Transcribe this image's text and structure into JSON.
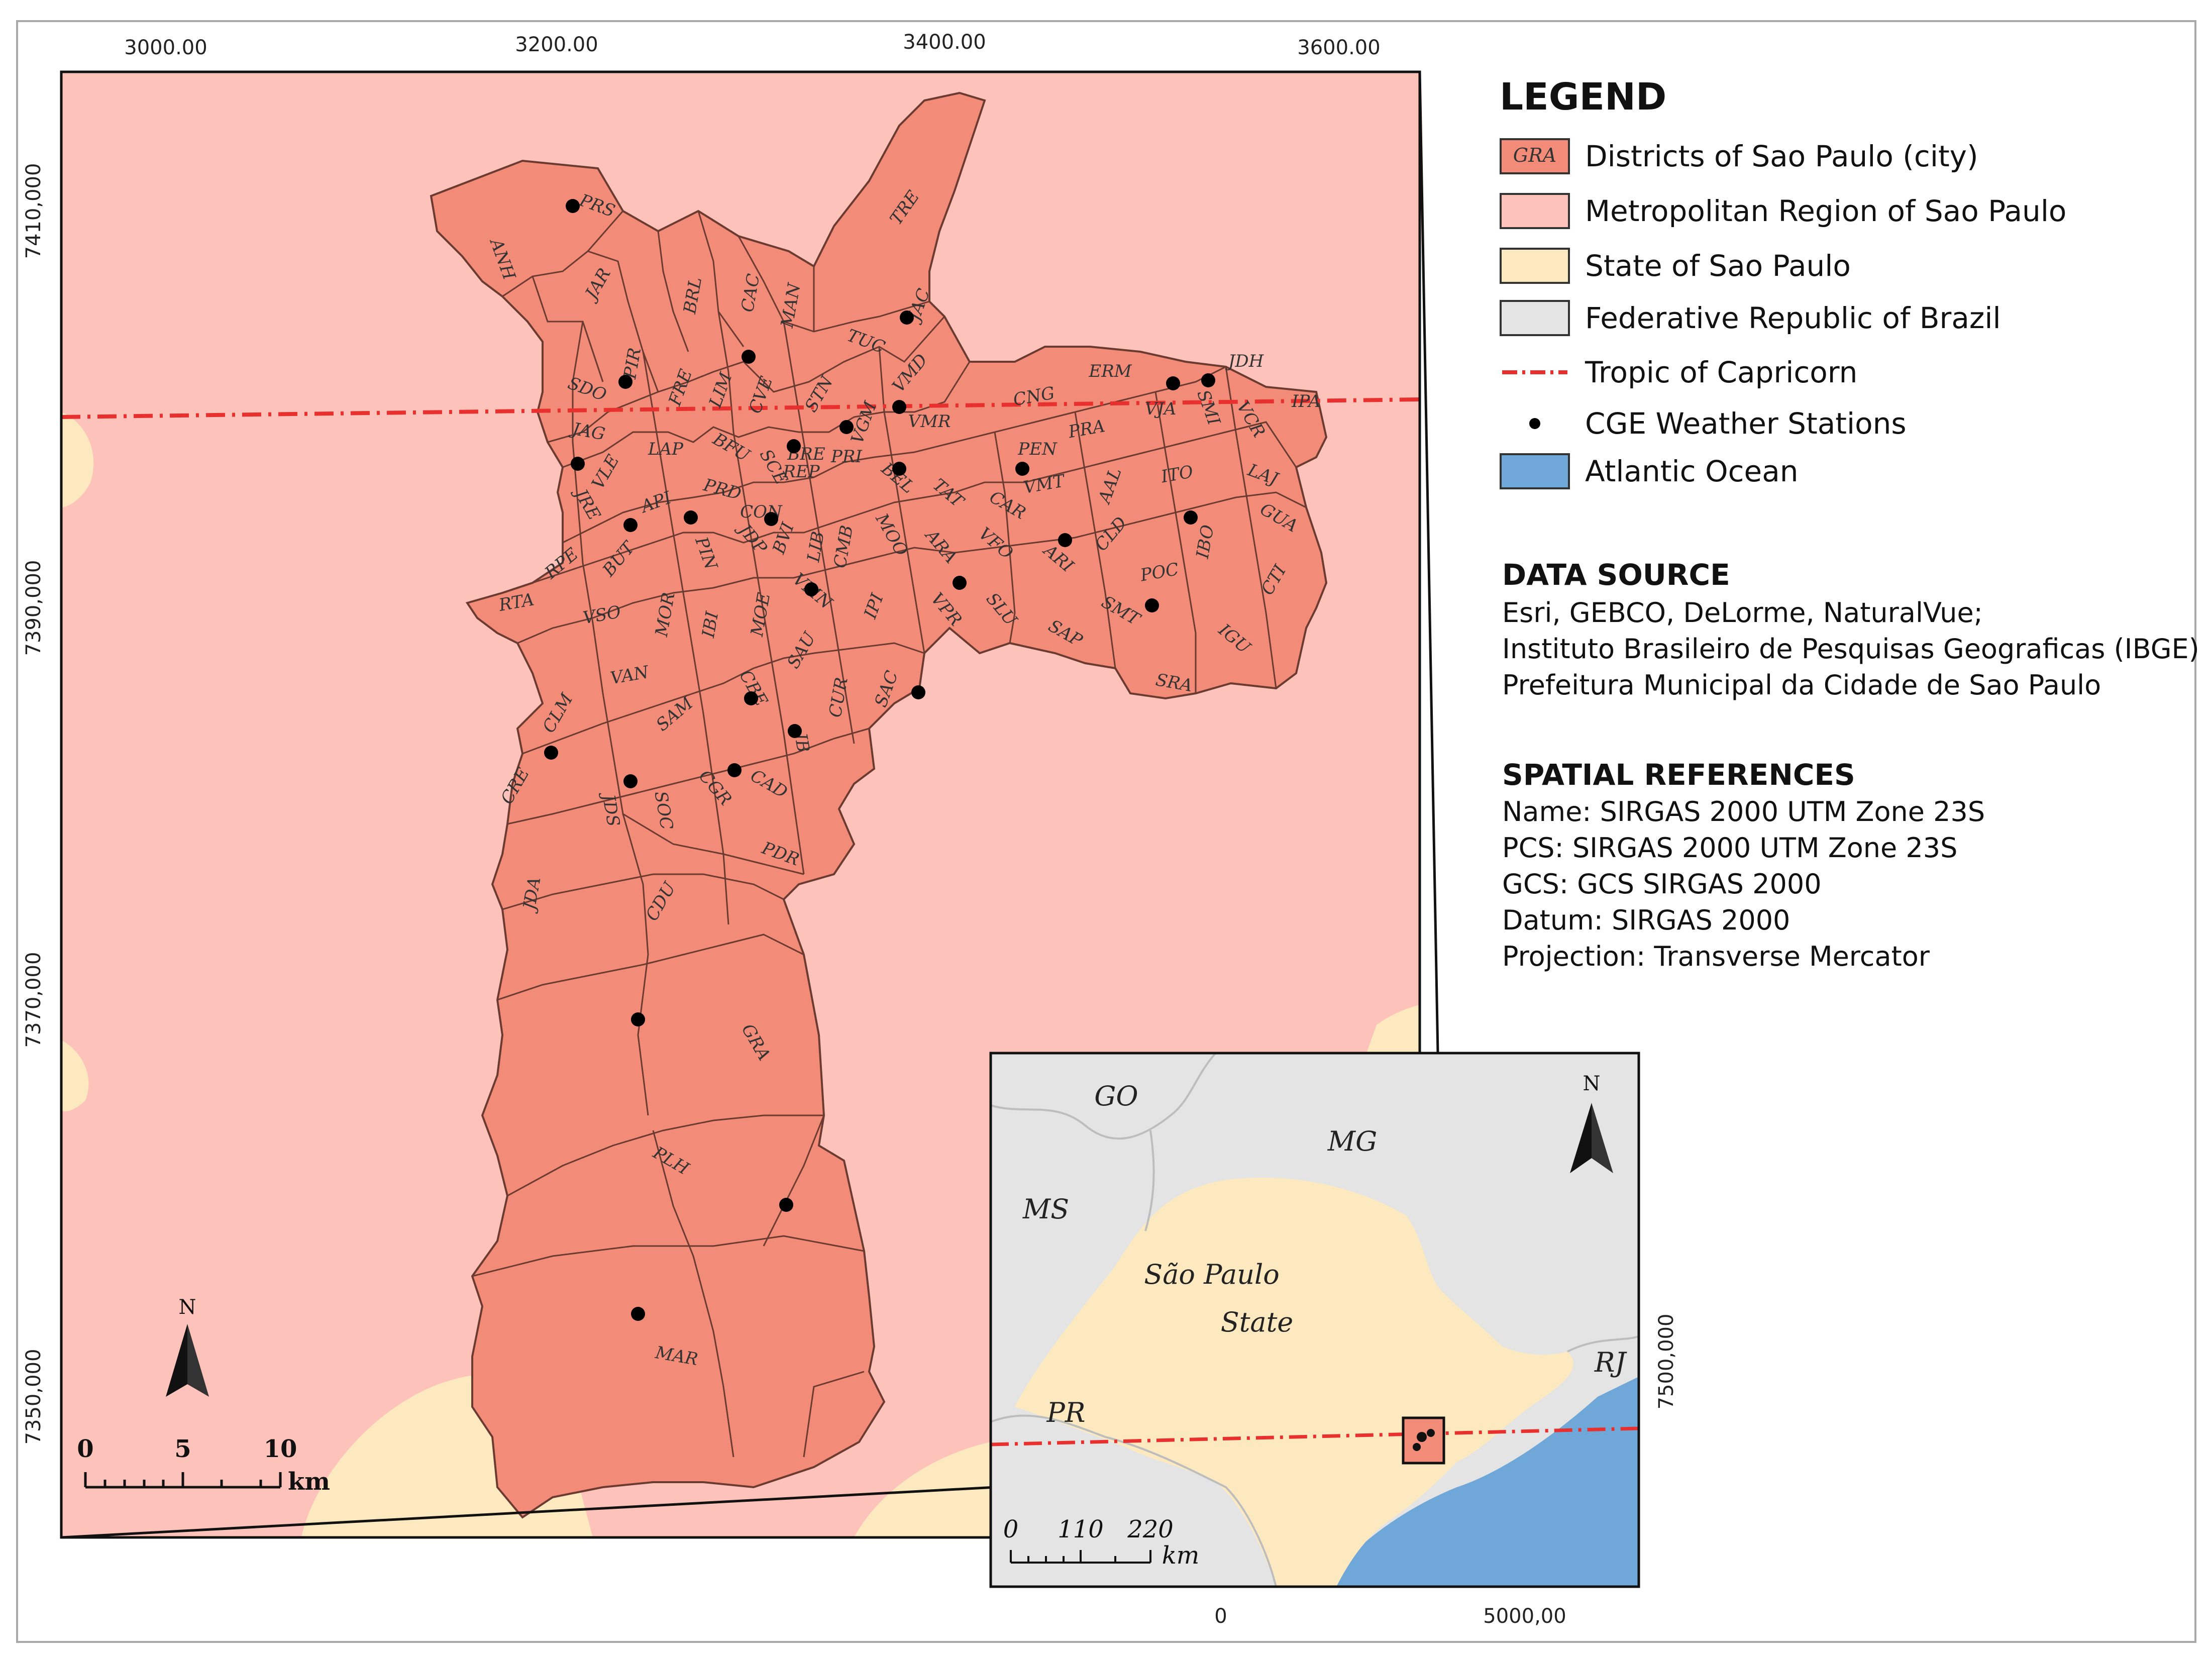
{
  "main_map": {
    "x_ticks": [
      "3000.00",
      "3200.00",
      "3400.00",
      "3600.00"
    ],
    "y_ticks": [
      "7410,000",
      "7390,000",
      "7370,000",
      "7350,000"
    ],
    "districts": [
      "PRS",
      "ANH",
      "JAR",
      "BRL",
      "CAC",
      "MAN",
      "TRE",
      "JAC",
      "PIR",
      "FRE",
      "LIM",
      "CVE",
      "STN",
      "TUC",
      "VMD",
      "SDO",
      "JAG",
      "VLE",
      "LAP",
      "BFU",
      "SCE",
      "BRE",
      "REP",
      "PRI",
      "VGM",
      "VMR",
      "BEL",
      "CNG",
      "ERM",
      "JDH",
      "VJA",
      "SMI",
      "VCR",
      "IPA",
      "PRA",
      "PEN",
      "VMT",
      "AAL",
      "ITO",
      "LAJ",
      "GUA",
      "CTI",
      "IBO",
      "JRE",
      "API",
      "PRD",
      "CON",
      "BVI",
      "LIB",
      "CMB",
      "MOO",
      "TAT",
      "CAR",
      "VFO",
      "ARA",
      "ARI",
      "CLD",
      "POC",
      "SMT",
      "SAP",
      "SLU",
      "VPR",
      "IPI",
      "JDP",
      "PIN",
      "BUT",
      "RPE",
      "RTA",
      "VSO",
      "MOR",
      "IBI",
      "MOE",
      "VMN",
      "SAU",
      "CUR",
      "SAC",
      "CBE",
      "JB",
      "CAD",
      "CGR",
      "SAM",
      "VAN",
      "CLM",
      "CRE",
      "JDS",
      "SOC",
      "PDR",
      "JDA",
      "CDU",
      "GRA",
      "PLH",
      "MAR",
      "IGU",
      "SRA"
    ],
    "scale_labels": [
      "0",
      "5",
      "10"
    ],
    "scale_unit": "km",
    "north_label": "N"
  },
  "inset_map": {
    "states": [
      "GO",
      "MG",
      "MS",
      "São Paulo",
      "State",
      "PR",
      "RJ"
    ],
    "x_ticks": [
      "0",
      "5000,00"
    ],
    "y_tick": "7500,000",
    "scale_labels": [
      "0",
      "110",
      "220"
    ],
    "scale_unit": "km",
    "north_label": "N"
  },
  "legend": {
    "title": "LEGEND",
    "items": [
      {
        "label": "Districts of Sao Paulo (city)",
        "swatch_text": "GRA",
        "color": "#f28b78"
      },
      {
        "label": "Metropolitan Region of Sao Paulo",
        "color": "#fdc2b9"
      },
      {
        "label": "State of Sao Paulo",
        "color": "#fde9bf"
      },
      {
        "label": "Federative Republic of Brazil",
        "color": "#e4e4e4"
      },
      {
        "label": "Tropic of Capricorn",
        "color": "#e8312e"
      },
      {
        "label": "CGE Weather Stations",
        "color": "#000000"
      },
      {
        "label": "Atlantic Ocean",
        "color": "#6fa8d8"
      }
    ]
  },
  "data_source": {
    "title": "DATA SOURCE",
    "lines": [
      "Esri, GEBCO, DeLorme, NaturalVue;",
      "Instituto Brasileiro de Pesquisas Geograficas (IBGE)",
      "Prefeitura Municipal da Cidade de Sao Paulo"
    ]
  },
  "spatial_references": {
    "title": "SPATIAL REFERENCES",
    "lines": [
      "Name: SIRGAS 2000 UTM Zone 23S",
      "PCS: SIRGAS 2000 UTM Zone 23S",
      "GCS: GCS SIRGAS 2000",
      "Datum: SIRGAS 2000",
      "Projection: Transverse Mercator"
    ]
  }
}
